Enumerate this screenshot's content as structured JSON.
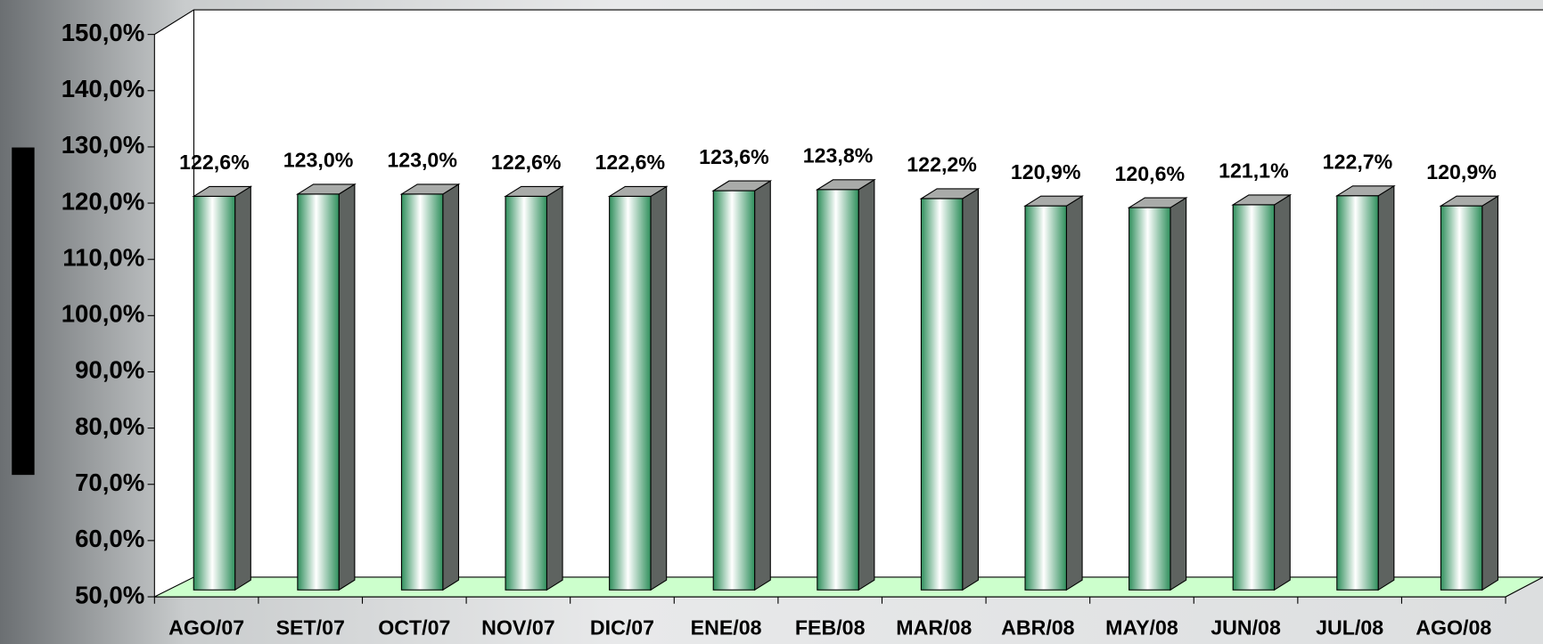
{
  "chart_data": {
    "type": "bar",
    "categories": [
      "AGO/07",
      "SET/07",
      "OCT/07",
      "NOV/07",
      "DIC/07",
      "ENE/08",
      "FEB/08",
      "MAR/08",
      "ABR/08",
      "MAY/08",
      "JUN/08",
      "JUL/08",
      "AGO/08"
    ],
    "values": [
      122.6,
      123.0,
      123.0,
      122.6,
      122.6,
      123.6,
      123.8,
      122.2,
      120.9,
      120.6,
      121.1,
      122.7,
      120.9
    ],
    "value_labels": [
      "122,6%",
      "123,0%",
      "123,0%",
      "122,6%",
      "122,6%",
      "123,6%",
      "123,8%",
      "122,2%",
      "120,9%",
      "120,6%",
      "121,1%",
      "122,7%",
      "120,9%"
    ],
    "color": "#3f9a6a",
    "ylim": [
      50,
      150
    ],
    "yticks": [
      {
        "value": 50,
        "label": "50,0%"
      },
      {
        "value": 60,
        "label": "60,0%"
      },
      {
        "value": 70,
        "label": "70,0%"
      },
      {
        "value": 80,
        "label": "80,0%"
      },
      {
        "value": 90,
        "label": "90,0%"
      },
      {
        "value": 100,
        "label": "100,0%"
      },
      {
        "value": 110,
        "label": "110,0%"
      },
      {
        "value": 120,
        "label": "120,0%"
      },
      {
        "value": 130,
        "label": "130,0%"
      },
      {
        "value": 140,
        "label": "140,0%"
      },
      {
        "value": 150,
        "label": "150,0%"
      }
    ]
  }
}
